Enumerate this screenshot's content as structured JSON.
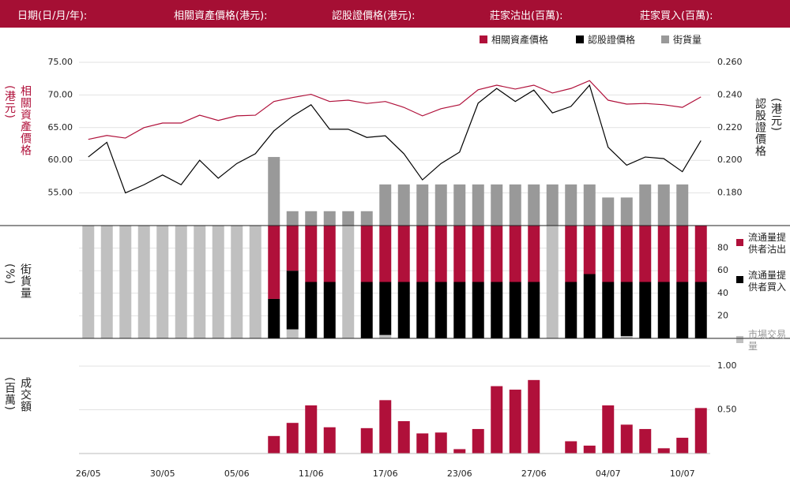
{
  "header": {
    "labels": [
      "日期(日/月/年):",
      "相關資產價格(港元):",
      "認股證價格(港元):",
      "莊家沽出(百萬):",
      "莊家買入(百萬):"
    ]
  },
  "chart_data": [
    {
      "type": "line",
      "ylabel": "相關資產價格(港元)",
      "y2label": "認股證價格(港元)",
      "ylim": [
        50,
        75
      ],
      "yticks": [
        {
          "value": 55,
          "label": "55.00"
        },
        {
          "value": 60,
          "label": "60.00"
        },
        {
          "value": 65,
          "label": "65.00"
        },
        {
          "value": 70,
          "label": "70.00"
        },
        {
          "value": 75,
          "label": "75.00"
        }
      ],
      "y2lim": [
        0.16,
        0.26
      ],
      "y2ticks": [
        {
          "value": 0.18,
          "label": "0.180"
        },
        {
          "value": 0.2,
          "label": "0.200"
        },
        {
          "value": 0.22,
          "label": "0.220"
        },
        {
          "value": 0.24,
          "label": "0.240"
        },
        {
          "value": 0.26,
          "label": "0.260"
        }
      ],
      "grid": true,
      "series": [
        {
          "name": "相關資產價格",
          "color": "#b0103a",
          "values": [
            63.2,
            63.8,
            63.4,
            65.0,
            65.7,
            65.7,
            66.9,
            66.1,
            66.8,
            66.9,
            69.0,
            69.6,
            70.1,
            69.0,
            69.2,
            68.7,
            69.0,
            68.1,
            66.8,
            67.9,
            68.5,
            70.8,
            71.5,
            70.9,
            71.5,
            70.3,
            71.0,
            72.2,
            69.2,
            68.6,
            68.7,
            68.5,
            68.1,
            69.7
          ]
        },
        {
          "name": "認股證價格",
          "color": "#000000",
          "axis": "y2",
          "values": [
            0.202,
            0.211,
            0.18,
            0.185,
            0.191,
            0.185,
            0.2,
            0.189,
            0.198,
            0.204,
            0.218,
            0.227,
            0.234,
            0.219,
            0.219,
            0.214,
            0.215,
            0.204,
            0.188,
            0.198,
            0.205,
            0.235,
            0.244,
            0.236,
            0.243,
            0.229,
            0.233,
            0.246,
            0.208,
            0.197,
            0.202,
            0.201,
            0.193,
            0.212
          ]
        },
        {
          "name": "街貨量",
          "color": "#999999",
          "type": "bar",
          "values": [
            null,
            null,
            null,
            null,
            null,
            null,
            null,
            null,
            null,
            null,
            60.5,
            52.2,
            52.2,
            52.2,
            52.2,
            52.2,
            56.3,
            56.3,
            56.3,
            56.3,
            56.3,
            56.3,
            56.3,
            56.3,
            56.3,
            56.3,
            56.3,
            56.3,
            54.3,
            54.3,
            56.3,
            56.3,
            56.3,
            null
          ]
        }
      ]
    },
    {
      "type": "stacked_bar",
      "ylabel": "街貨量(%)",
      "ylim": [
        0,
        100
      ],
      "yticks": [
        20,
        40,
        60,
        80
      ],
      "grid": true,
      "series": [
        {
          "name": "流通量提供者沽出",
          "color": "#b0103a",
          "values": [
            null,
            null,
            null,
            null,
            null,
            null,
            null,
            null,
            null,
            null,
            65,
            40,
            50,
            50,
            null,
            50,
            50,
            50,
            50,
            50,
            50,
            50,
            50,
            50,
            50,
            null,
            50,
            43,
            50,
            50,
            50,
            50,
            50,
            50
          ]
        },
        {
          "name": "流通量提供者買入",
          "color": "#000000",
          "values": [
            null,
            null,
            null,
            null,
            null,
            null,
            null,
            null,
            null,
            null,
            35,
            52,
            50,
            50,
            null,
            50,
            47,
            50,
            50,
            50,
            50,
            50,
            50,
            50,
            50,
            null,
            50,
            57,
            50,
            48,
            50,
            50,
            50,
            50
          ]
        },
        {
          "name": "市場交易量",
          "color": "#c0c0c0",
          "values": [
            100,
            100,
            100,
            100,
            100,
            100,
            100,
            100,
            100,
            100,
            null,
            8,
            null,
            null,
            100,
            null,
            3,
            null,
            null,
            null,
            null,
            null,
            null,
            null,
            null,
            100,
            null,
            null,
            null,
            2,
            null,
            null,
            null,
            null
          ]
        }
      ]
    },
    {
      "type": "bar",
      "ylabel": "成交額(百萬)",
      "color": "#b0103a",
      "categories": [
        "26/05",
        null,
        null,
        null,
        "30/05",
        null,
        null,
        null,
        "05/06",
        null,
        null,
        null,
        "11/06",
        null,
        null,
        null,
        "17/06",
        null,
        null,
        null,
        "23/06",
        null,
        null,
        null,
        "27/06",
        null,
        null,
        null,
        "04/07",
        null,
        null,
        null,
        "10/07",
        null
      ],
      "values": [
        null,
        null,
        null,
        null,
        null,
        null,
        null,
        null,
        null,
        null,
        0.2,
        0.35,
        0.55,
        0.3,
        null,
        0.29,
        0.61,
        0.37,
        0.23,
        0.24,
        0.05,
        0.28,
        0.77,
        0.73,
        0.84,
        null,
        0.14,
        0.09,
        0.55,
        0.33,
        0.28,
        0.06,
        0.18,
        0.52
      ],
      "ylim": [
        0,
        1.1
      ],
      "yticks": [
        {
          "value": 0.5,
          "label": "0.50"
        },
        {
          "value": 1,
          "label": "1.00"
        }
      ],
      "grid": true
    }
  ]
}
